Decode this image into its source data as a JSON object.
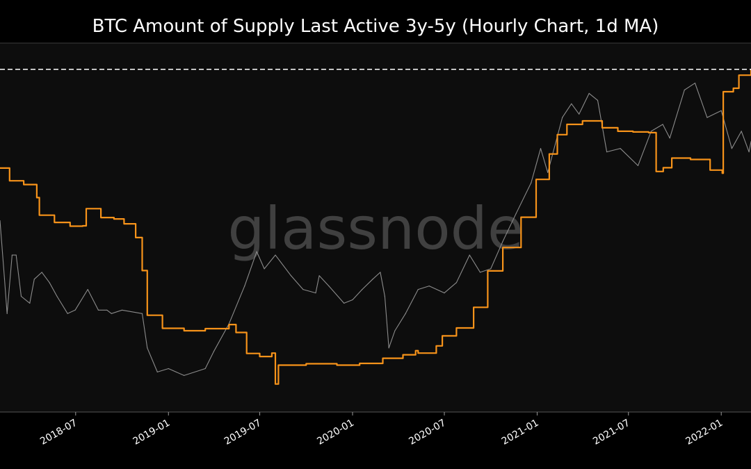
{
  "chart_data": {
    "type": "line",
    "title": "BTC Amount of Supply Last Active 3y-5y (Hourly Chart, 1d MA)",
    "watermark": "glassnode",
    "xlabel": "",
    "ylabel": "",
    "grid": false,
    "legend": "none",
    "x_ticks": [
      "2018-07",
      "2019-01",
      "2019-07",
      "2020-01",
      "2020-07",
      "2021-01",
      "2021-07",
      "2022-01"
    ],
    "x_range": [
      "2018-02-01",
      "2022-03-01"
    ],
    "y_range": [
      0,
      100
    ],
    "reference_line": {
      "style": "dashed",
      "color": "#ffffff",
      "value": 96
    },
    "colors": {
      "background": "#0d0d0d",
      "page": "#000000",
      "supply": "#f7931a",
      "price": "#8c8c8c",
      "text": "#ffffff",
      "watermark": "#6a6a6a"
    },
    "series": [
      {
        "key": "supply",
        "color": "#f7931a",
        "points": [
          [
            "2018-02-01",
            67.3
          ],
          [
            "2018-02-20",
            63.6
          ],
          [
            "2018-03-20",
            62.5
          ],
          [
            "2018-04-15",
            58.7
          ],
          [
            "2018-04-20",
            53.6
          ],
          [
            "2018-05-20",
            51.5
          ],
          [
            "2018-06-20",
            50.4
          ],
          [
            "2018-07-15",
            50.5
          ],
          [
            "2018-07-22",
            55.5
          ],
          [
            "2018-08-20",
            52.9
          ],
          [
            "2018-09-15",
            52.5
          ],
          [
            "2018-10-05",
            51.1
          ],
          [
            "2018-10-28",
            47.1
          ],
          [
            "2018-11-10",
            37.5
          ],
          [
            "2018-11-20",
            24.5
          ],
          [
            "2018-12-20",
            20.7
          ],
          [
            "2019-02-01",
            20.0
          ],
          [
            "2019-03-15",
            20.6
          ],
          [
            "2019-05-01",
            21.8
          ],
          [
            "2019-05-15",
            19.5
          ],
          [
            "2019-06-05",
            13.4
          ],
          [
            "2019-07-01",
            12.5
          ],
          [
            "2019-07-25",
            13.5
          ],
          [
            "2019-08-01",
            4.5
          ],
          [
            "2019-08-07",
            10.0
          ],
          [
            "2019-10-01",
            10.4
          ],
          [
            "2019-12-01",
            10.0
          ],
          [
            "2020-01-15",
            10.5
          ],
          [
            "2020-03-01",
            12.0
          ],
          [
            "2020-04-10",
            13.0
          ],
          [
            "2020-05-05",
            14.2
          ],
          [
            "2020-05-10",
            13.5
          ],
          [
            "2020-06-15",
            15.6
          ],
          [
            "2020-06-27",
            18.5
          ],
          [
            "2020-07-25",
            20.8
          ],
          [
            "2020-08-28",
            26.8
          ],
          [
            "2020-09-25",
            37.4
          ],
          [
            "2020-10-25",
            44.2
          ],
          [
            "2020-11-30",
            53.0
          ],
          [
            "2020-12-30",
            64.0
          ],
          [
            "2021-01-25",
            71.4
          ],
          [
            "2021-02-10",
            77.0
          ],
          [
            "2021-03-01",
            80.0
          ],
          [
            "2021-04-01",
            81.0
          ],
          [
            "2021-05-10",
            79.0
          ],
          [
            "2021-06-10",
            78.0
          ],
          [
            "2021-07-10",
            77.8
          ],
          [
            "2021-08-10",
            77.6
          ],
          [
            "2021-08-25",
            66.3
          ],
          [
            "2021-09-08",
            67.4
          ],
          [
            "2021-09-25",
            70.2
          ],
          [
            "2021-11-01",
            69.8
          ],
          [
            "2021-12-10",
            66.7
          ],
          [
            "2022-01-03",
            65.8
          ],
          [
            "2022-01-05",
            89.5
          ],
          [
            "2022-01-25",
            90.5
          ],
          [
            "2022-02-05",
            94.3
          ],
          [
            "2022-03-01",
            96.0
          ]
        ]
      },
      {
        "key": "price",
        "color": "#8c8c8c",
        "points": [
          [
            "2018-02-01",
            52.0
          ],
          [
            "2018-02-10",
            35.0
          ],
          [
            "2018-02-15",
            25.0
          ],
          [
            "2018-02-25",
            42.0
          ],
          [
            "2018-03-05",
            42.0
          ],
          [
            "2018-03-15",
            30.0
          ],
          [
            "2018-04-01",
            28.0
          ],
          [
            "2018-04-10",
            35.0
          ],
          [
            "2018-04-25",
            37.0
          ],
          [
            "2018-05-10",
            34.0
          ],
          [
            "2018-05-25",
            30.0
          ],
          [
            "2018-06-15",
            25.0
          ],
          [
            "2018-06-30",
            26.0
          ],
          [
            "2018-07-25",
            32.0
          ],
          [
            "2018-08-15",
            26.0
          ],
          [
            "2018-09-01",
            26.0
          ],
          [
            "2018-09-10",
            25.0
          ],
          [
            "2018-10-01",
            26.0
          ],
          [
            "2018-11-10",
            25.0
          ],
          [
            "2018-11-20",
            15.0
          ],
          [
            "2018-12-10",
            8.0
          ],
          [
            "2019-01-01",
            9.0
          ],
          [
            "2019-02-01",
            7.0
          ],
          [
            "2019-03-15",
            9.0
          ],
          [
            "2019-04-01",
            14.0
          ],
          [
            "2019-05-01",
            22.0
          ],
          [
            "2019-06-01",
            33.0
          ],
          [
            "2019-06-25",
            43.0
          ],
          [
            "2019-07-10",
            38.0
          ],
          [
            "2019-08-01",
            42.0
          ],
          [
            "2019-09-01",
            36.0
          ],
          [
            "2019-09-25",
            32.0
          ],
          [
            "2019-10-20",
            31.0
          ],
          [
            "2019-10-27",
            36.0
          ],
          [
            "2019-11-15",
            33.0
          ],
          [
            "2019-12-15",
            28.0
          ],
          [
            "2020-01-01",
            29.0
          ],
          [
            "2020-01-20",
            32.0
          ],
          [
            "2020-02-10",
            35.0
          ],
          [
            "2020-02-25",
            37.0
          ],
          [
            "2020-03-05",
            30.0
          ],
          [
            "2020-03-13",
            15.0
          ],
          [
            "2020-03-25",
            20.0
          ],
          [
            "2020-04-15",
            25.0
          ],
          [
            "2020-05-10",
            32.0
          ],
          [
            "2020-06-01",
            33.0
          ],
          [
            "2020-07-01",
            31.0
          ],
          [
            "2020-07-25",
            34.0
          ],
          [
            "2020-08-20",
            42.0
          ],
          [
            "2020-09-10",
            37.0
          ],
          [
            "2020-10-01",
            38.0
          ],
          [
            "2020-10-25",
            46.0
          ],
          [
            "2020-11-20",
            54.0
          ],
          [
            "2020-12-20",
            63.0
          ],
          [
            "2021-01-08",
            73.0
          ],
          [
            "2021-01-22",
            66.0
          ],
          [
            "2021-02-20",
            82.0
          ],
          [
            "2021-03-10",
            86.0
          ],
          [
            "2021-03-25",
            83.0
          ],
          [
            "2021-04-14",
            89.0
          ],
          [
            "2021-05-01",
            87.0
          ],
          [
            "2021-05-19",
            72.0
          ],
          [
            "2021-06-15",
            73.0
          ],
          [
            "2021-07-20",
            68.0
          ],
          [
            "2021-08-15",
            78.0
          ],
          [
            "2021-09-07",
            80.0
          ],
          [
            "2021-09-21",
            76.0
          ],
          [
            "2021-10-20",
            90.0
          ],
          [
            "2021-11-10",
            92.0
          ],
          [
            "2021-12-04",
            82.0
          ],
          [
            "2022-01-01",
            84.0
          ],
          [
            "2022-01-22",
            73.0
          ],
          [
            "2022-02-10",
            78.0
          ],
          [
            "2022-02-25",
            72.0
          ],
          [
            "2022-03-01",
            75.0
          ]
        ]
      }
    ]
  }
}
